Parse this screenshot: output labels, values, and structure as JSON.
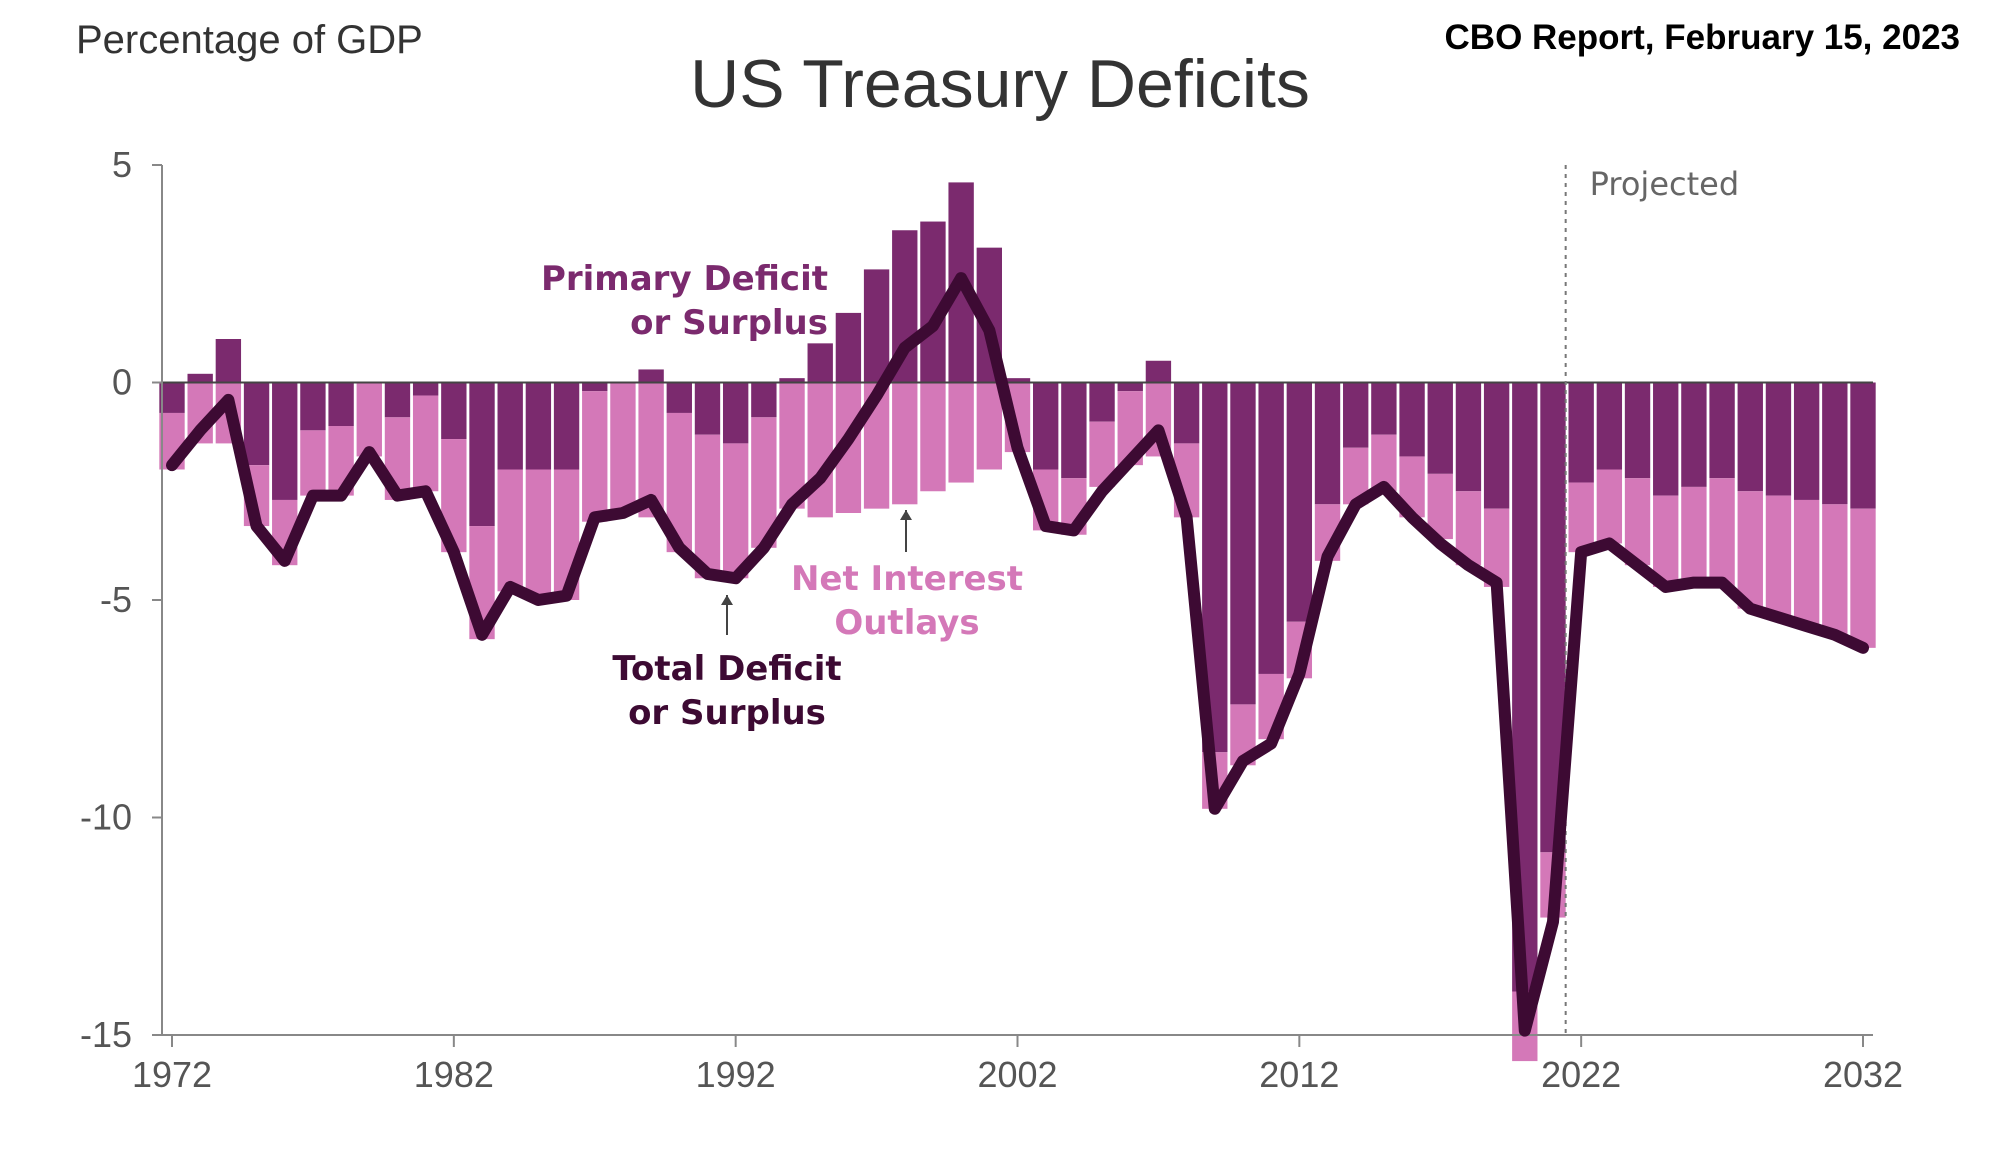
{
  "header": {
    "units_note": "Percentage of GDP",
    "source": "CBO Report, February 15, 2023"
  },
  "chart_data": {
    "type": "bar",
    "title": "US Treasury Deficits",
    "xlabel": "",
    "ylabel": "",
    "ylim": [
      -15,
      5
    ],
    "xlim": [
      1972,
      2032
    ],
    "y_ticks": [
      "5",
      "0",
      "-5",
      "-10",
      "-15"
    ],
    "x_ticks": [
      "1972",
      "1982",
      "1992",
      "2002",
      "2012",
      "2022",
      "2032"
    ],
    "grid": false,
    "projected_start": 2022,
    "projected_label": "Projected",
    "years": [
      1972,
      1973,
      1974,
      1975,
      1976,
      1977,
      1978,
      1979,
      1980,
      1981,
      1982,
      1983,
      1984,
      1985,
      1986,
      1987,
      1988,
      1989,
      1990,
      1991,
      1992,
      1993,
      1994,
      1995,
      1996,
      1997,
      1998,
      1999,
      2000,
      2001,
      2002,
      2003,
      2004,
      2005,
      2006,
      2007,
      2008,
      2009,
      2010,
      2011,
      2012,
      2013,
      2014,
      2015,
      2016,
      2017,
      2018,
      2019,
      2020,
      2021,
      2022,
      2023,
      2024,
      2025,
      2026,
      2027,
      2028,
      2029,
      2030,
      2031,
      2032
    ],
    "series": [
      {
        "name": "Primary Deficit or Surplus",
        "color": "#7b2a6e",
        "values": [
          -0.7,
          0.2,
          1.0,
          -1.9,
          -2.7,
          -1.1,
          -1.0,
          0.0,
          -0.8,
          -0.3,
          -1.3,
          -3.3,
          -2.0,
          -2.0,
          -2.0,
          -0.2,
          0.0,
          0.3,
          -0.7,
          -1.2,
          -1.4,
          -0.8,
          0.1,
          0.9,
          1.6,
          2.6,
          3.5,
          3.7,
          4.6,
          3.1,
          0.1,
          -2.0,
          -2.2,
          -0.9,
          -0.2,
          0.5,
          -1.4,
          -8.5,
          -7.4,
          -6.7,
          -5.5,
          -2.8,
          -1.5,
          -1.2,
          -1.7,
          -2.1,
          -2.5,
          -2.9,
          -14.0,
          -10.8,
          -2.3,
          -2.0,
          -2.2,
          -2.6,
          -2.4,
          -2.2,
          -2.5,
          -2.6,
          -2.7,
          -2.8,
          -2.9
        ]
      },
      {
        "name": "Net Interest Outlays",
        "color": "#d478b8",
        "values": [
          -1.3,
          -1.4,
          -1.4,
          -1.4,
          -1.5,
          -1.5,
          -1.6,
          -1.7,
          -1.9,
          -2.2,
          -2.6,
          -2.6,
          -2.8,
          -3.0,
          -3.0,
          -3.0,
          -3.0,
          -3.1,
          -3.2,
          -3.3,
          -3.1,
          -3.0,
          -2.9,
          -3.1,
          -3.0,
          -2.9,
          -2.8,
          -2.5,
          -2.3,
          -2.0,
          -1.6,
          -1.4,
          -1.3,
          -1.5,
          -1.7,
          -1.7,
          -1.7,
          -1.3,
          -1.4,
          -1.5,
          -1.3,
          -1.3,
          -1.3,
          -1.3,
          -1.4,
          -1.5,
          -1.7,
          -1.8,
          -1.6,
          -1.5,
          -1.6,
          -1.7,
          -2.0,
          -2.1,
          -2.3,
          -2.5,
          -2.7,
          -2.8,
          -2.9,
          -3.0,
          -3.2
        ]
      },
      {
        "name": "Total Deficit or Surplus",
        "color": "#3d0a33",
        "values": [
          -1.9,
          -1.1,
          -0.4,
          -3.3,
          -4.1,
          -2.6,
          -2.6,
          -1.6,
          -2.6,
          -2.5,
          -3.9,
          -5.8,
          -4.7,
          -5.0,
          -4.9,
          -3.1,
          -3.0,
          -2.7,
          -3.8,
          -4.4,
          -4.5,
          -3.8,
          -2.8,
          -2.2,
          -1.3,
          -0.3,
          0.8,
          1.3,
          2.4,
          1.2,
          -1.5,
          -3.3,
          -3.4,
          -2.5,
          -1.8,
          -1.1,
          -3.1,
          -9.8,
          -8.7,
          -8.3,
          -6.7,
          -4.0,
          -2.8,
          -2.4,
          -3.1,
          -3.7,
          -4.2,
          -4.6,
          -14.9,
          -12.4,
          -3.9,
          -3.7,
          -4.2,
          -4.7,
          -4.6,
          -4.6,
          -5.2,
          -5.4,
          -5.6,
          -5.8,
          -6.1
        ]
      }
    ],
    "annotations": [
      {
        "lines": [
          "Primary Deficit",
          "or Surplus"
        ],
        "color": "#7b2a6e"
      },
      {
        "lines": [
          "Net Interest",
          "Outlays"
        ],
        "color": "#d478b8"
      },
      {
        "lines": [
          "Total Deficit",
          "or Surplus"
        ],
        "color": "#3d0a33"
      }
    ]
  }
}
